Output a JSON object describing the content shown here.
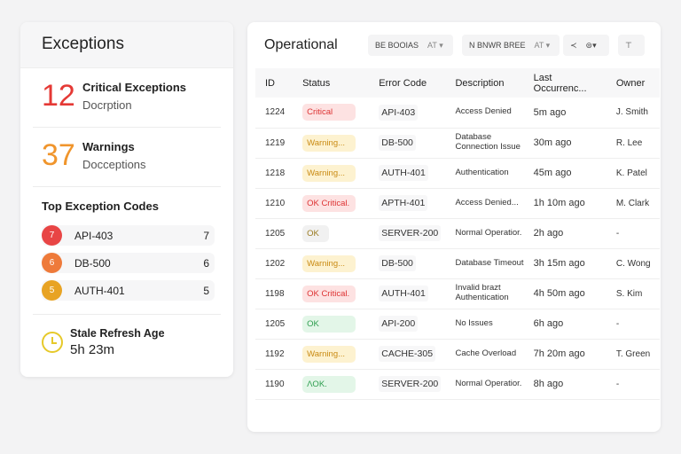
{
  "left": {
    "title": "Exceptions",
    "critical": {
      "count": "12",
      "label": "Critical Exceptions",
      "sub": "Docrption",
      "color": "#e53935"
    },
    "warnings": {
      "count": "37",
      "label": "Warnings",
      "sub": "Docceptions",
      "color": "#f0952c"
    },
    "top_title": "Top Exception Codes",
    "codes": [
      {
        "rank": "7",
        "code": "API-403",
        "count": "7",
        "color": "#e84545"
      },
      {
        "rank": "6",
        "code": "DB-500",
        "count": "6",
        "color": "#ee7a3a"
      },
      {
        "rank": "5",
        "code": "AUTH-401",
        "count": "5",
        "color": "#e8a323"
      }
    ],
    "stale": {
      "label": "Stale Refresh Age",
      "value": "5h 23m",
      "icon": "clock-icon"
    }
  },
  "right": {
    "title": "Operational",
    "filters": [
      {
        "label": "BE BOOIAS",
        "caret": "AT ▾"
      },
      {
        "label": "N BNWR BREE",
        "caret": "AT ▾"
      }
    ],
    "tools": [
      "≺",
      "⊜▾",
      "⊤"
    ],
    "columns": [
      "ID",
      "Status",
      "Error Code",
      "Description",
      "Last Occurrenc...",
      "Owner"
    ],
    "rows": [
      {
        "id": "1224",
        "status": "Critical",
        "kind": "crit",
        "code": "API-403",
        "desc": "Access Denied",
        "time": "5m ago",
        "owner": "J. Smith"
      },
      {
        "id": "1219",
        "status": "Warning...",
        "kind": "warn",
        "code": "DB-500",
        "desc": "Database Connection Issue",
        "time": "30m ago",
        "owner": "R. Lee"
      },
      {
        "id": "1218",
        "status": "Warning...",
        "kind": "warn",
        "code": "AUTH-401",
        "desc": "Authentication",
        "time": "45m ago",
        "owner": "K. Patel"
      },
      {
        "id": "1210",
        "status": "OK Critical.",
        "kind": "crit",
        "code": "APTH-401",
        "desc": "Access Denied...",
        "time": "1h 10m ago",
        "owner": "M. Clark"
      },
      {
        "id": "1205",
        "status": "OK",
        "kind": "ok",
        "code": "SERVER-200",
        "desc": "Normal Operatior.",
        "time": "2h ago",
        "owner": "-"
      },
      {
        "id": "1202",
        "status": "Warning...",
        "kind": "warn",
        "code": "DB-500",
        "desc": "Database Timeout",
        "time": "3h 15m ago",
        "owner": "C. Wong"
      },
      {
        "id": "1198",
        "status": "OK Critical.",
        "kind": "crit",
        "code": "AUTH-401",
        "desc": "Invalid brazt Authentication",
        "time": "4h 50m ago",
        "owner": "S. Kim"
      },
      {
        "id": "1205",
        "status": "OK",
        "kind": "okg",
        "code": "API-200",
        "desc": "No Issues",
        "time": "6h ago",
        "owner": "-"
      },
      {
        "id": "1192",
        "status": "Warning...",
        "kind": "warn",
        "code": "CACHE-305",
        "desc": "Cache Overload",
        "time": "7h 20m ago",
        "owner": "T. Green"
      },
      {
        "id": "1190",
        "status": "ΛOK.",
        "kind": "okg",
        "code": "SERVER-200",
        "desc": "Normal Operatior.",
        "time": "8h ago",
        "owner": "-"
      }
    ]
  }
}
